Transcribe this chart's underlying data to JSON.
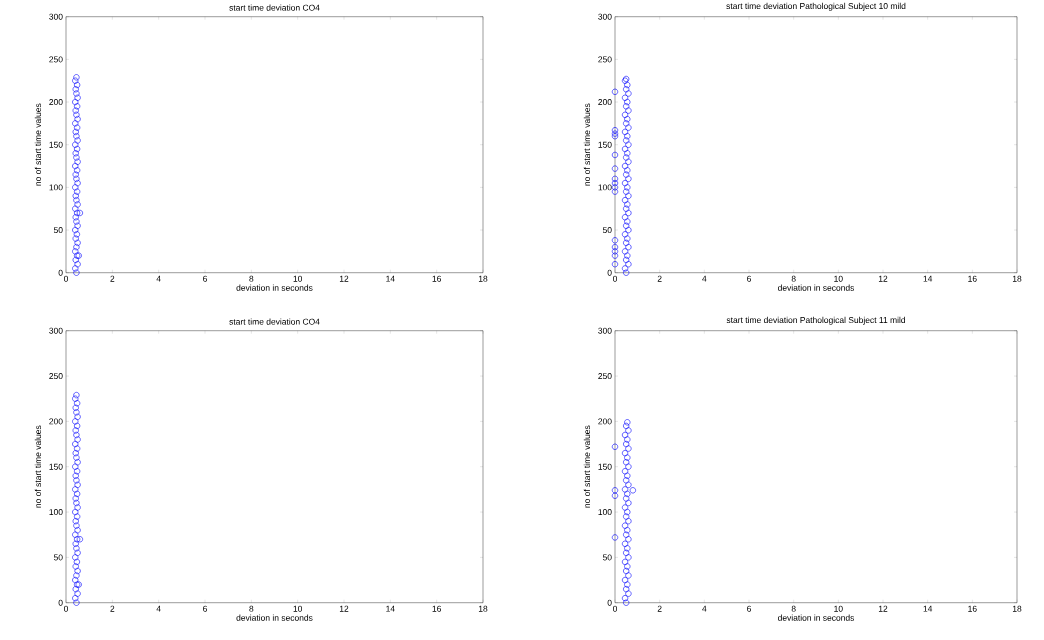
{
  "chart_data": [
    {
      "type": "scatter",
      "title": "start time deviation CO4",
      "xlabel": "deviation in seconds",
      "ylabel": "no of start time values",
      "color": "#0000ff",
      "marker": "circle",
      "xlim": [
        0,
        18
      ],
      "xticks": [
        0,
        2,
        4,
        6,
        8,
        10,
        12,
        14,
        16,
        18
      ],
      "ylim": [
        0,
        300
      ],
      "yticks": [
        0,
        50,
        100,
        150,
        200,
        250,
        300
      ],
      "x": [
        0.45,
        0.4,
        0.5,
        0.42,
        0.48,
        0.4,
        0.45,
        0.5,
        0.42,
        0.47,
        0.4,
        0.5,
        0.45,
        0.42,
        0.48,
        0.4,
        0.5,
        0.45,
        0.42,
        0.48,
        0.4,
        0.5,
        0.45,
        0.42,
        0.48,
        0.4,
        0.5,
        0.45,
        0.42,
        0.48,
        0.4,
        0.5,
        0.45,
        0.42,
        0.48,
        0.4,
        0.5,
        0.45,
        0.42,
        0.48,
        0.4,
        0.5,
        0.45,
        0.42,
        0.48,
        0.4,
        0.45,
        0.6,
        0.55
      ],
      "values": [
        0,
        5,
        10,
        15,
        20,
        25,
        30,
        35,
        40,
        45,
        50,
        55,
        60,
        65,
        70,
        75,
        80,
        85,
        90,
        95,
        100,
        105,
        110,
        115,
        120,
        125,
        130,
        135,
        140,
        145,
        150,
        155,
        160,
        165,
        170,
        175,
        180,
        185,
        190,
        195,
        200,
        205,
        210,
        215,
        220,
        225,
        229,
        70,
        20
      ]
    },
    {
      "type": "scatter",
      "title": "start time deviation Pathological Subject 10 mild",
      "xlabel": "deviation in seconds",
      "ylabel": "no of start time values",
      "color": "#0000ff",
      "marker": "circle",
      "xlim": [
        0,
        18
      ],
      "xticks": [
        0,
        2,
        4,
        6,
        8,
        10,
        12,
        14,
        16,
        18
      ],
      "ylim": [
        0,
        300
      ],
      "yticks": [
        0,
        50,
        100,
        150,
        200,
        250,
        300
      ],
      "x": [
        0.5,
        0.45,
        0.6,
        0.5,
        0.55,
        0.45,
        0.6,
        0.5,
        0.55,
        0.45,
        0.6,
        0.5,
        0.55,
        0.45,
        0.6,
        0.5,
        0.55,
        0.45,
        0.6,
        0.5,
        0.55,
        0.45,
        0.6,
        0.5,
        0.55,
        0.45,
        0.6,
        0.5,
        0.55,
        0.45,
        0.6,
        0.5,
        0.55,
        0.45,
        0.6,
        0.5,
        0.55,
        0.45,
        0.6,
        0.5,
        0.55,
        0.45,
        0.6,
        0.5,
        0.55,
        0.45,
        0.5,
        0,
        0,
        0,
        0,
        0,
        0,
        0,
        0,
        0,
        0,
        0,
        0,
        0,
        0,
        0
      ],
      "values": [
        0,
        5,
        10,
        15,
        20,
        25,
        30,
        35,
        40,
        45,
        50,
        55,
        60,
        65,
        70,
        75,
        80,
        85,
        90,
        95,
        100,
        105,
        110,
        115,
        120,
        125,
        130,
        135,
        140,
        145,
        150,
        155,
        160,
        165,
        170,
        175,
        180,
        185,
        190,
        195,
        200,
        205,
        210,
        215,
        220,
        225,
        227,
        10,
        20,
        25,
        30,
        38,
        95,
        100,
        105,
        110,
        122,
        138,
        160,
        163,
        167,
        212
      ]
    },
    {
      "type": "scatter",
      "title": "start time deviation CO4",
      "xlabel": "deviation in seconds",
      "ylabel": "no of start time values",
      "color": "#0000ff",
      "marker": "circle",
      "xlim": [
        0,
        18
      ],
      "xticks": [
        0,
        2,
        4,
        6,
        8,
        10,
        12,
        14,
        16,
        18
      ],
      "ylim": [
        0,
        300
      ],
      "yticks": [
        0,
        50,
        100,
        150,
        200,
        250,
        300
      ],
      "x": [
        0.45,
        0.4,
        0.5,
        0.42,
        0.48,
        0.4,
        0.45,
        0.5,
        0.42,
        0.47,
        0.4,
        0.5,
        0.45,
        0.42,
        0.48,
        0.4,
        0.5,
        0.45,
        0.42,
        0.48,
        0.4,
        0.5,
        0.45,
        0.42,
        0.48,
        0.4,
        0.5,
        0.45,
        0.42,
        0.48,
        0.4,
        0.5,
        0.45,
        0.42,
        0.48,
        0.4,
        0.5,
        0.45,
        0.42,
        0.48,
        0.4,
        0.5,
        0.45,
        0.42,
        0.48,
        0.4,
        0.45,
        0.6,
        0.55
      ],
      "values": [
        0,
        5,
        10,
        15,
        20,
        25,
        30,
        35,
        40,
        45,
        50,
        55,
        60,
        65,
        70,
        75,
        80,
        85,
        90,
        95,
        100,
        105,
        110,
        115,
        120,
        125,
        130,
        135,
        140,
        145,
        150,
        155,
        160,
        165,
        170,
        175,
        180,
        185,
        190,
        195,
        200,
        205,
        210,
        215,
        220,
        225,
        229,
        70,
        20
      ]
    },
    {
      "type": "scatter",
      "title": "start time deviation Pathological Subject 11 mild",
      "xlabel": "deviation in seconds",
      "ylabel": "no of start time values",
      "color": "#0000ff",
      "marker": "circle",
      "xlim": [
        0,
        18
      ],
      "xticks": [
        0,
        2,
        4,
        6,
        8,
        10,
        12,
        14,
        16,
        18
      ],
      "ylim": [
        0,
        300
      ],
      "yticks": [
        0,
        50,
        100,
        150,
        200,
        250,
        300
      ],
      "x": [
        0.5,
        0.45,
        0.6,
        0.5,
        0.55,
        0.45,
        0.6,
        0.5,
        0.55,
        0.45,
        0.6,
        0.5,
        0.55,
        0.45,
        0.6,
        0.5,
        0.55,
        0.45,
        0.6,
        0.5,
        0.55,
        0.45,
        0.6,
        0.5,
        0.55,
        0.45,
        0.6,
        0.5,
        0.55,
        0.45,
        0.6,
        0.5,
        0.55,
        0.45,
        0.6,
        0.5,
        0.55,
        0.45,
        0.6,
        0.5,
        0.55,
        0,
        0,
        0,
        0,
        0.8
      ],
      "values": [
        0,
        5,
        10,
        15,
        20,
        25,
        30,
        35,
        40,
        45,
        50,
        55,
        60,
        65,
        70,
        75,
        80,
        85,
        90,
        95,
        100,
        105,
        110,
        115,
        120,
        125,
        130,
        135,
        140,
        145,
        150,
        155,
        160,
        165,
        170,
        175,
        180,
        185,
        190,
        195,
        199,
        72,
        118,
        124,
        172,
        124
      ]
    }
  ]
}
